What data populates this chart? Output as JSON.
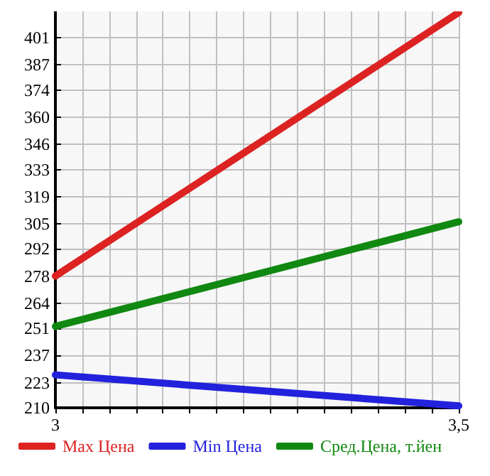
{
  "chart_data": {
    "type": "line",
    "x": [
      3,
      3.5
    ],
    "series": [
      {
        "name": "Max Цена",
        "color": "#dd2222",
        "values": [
          278,
          414
        ]
      },
      {
        "name": "Min Цена",
        "color": "#2222dd",
        "values": [
          227,
          211
        ]
      },
      {
        "name": "Сред.Цена, т.йен",
        "color": "#118811",
        "values": [
          252,
          306
        ]
      }
    ],
    "xlim": [
      3,
      3.5
    ],
    "xticks": [
      {
        "value": 3,
        "label": "3"
      },
      {
        "value": 3.0333,
        "label": null
      },
      {
        "value": 3.0667,
        "label": null
      },
      {
        "value": 3.1,
        "label": null
      },
      {
        "value": 3.1333,
        "label": null
      },
      {
        "value": 3.1667,
        "label": null
      },
      {
        "value": 3.2,
        "label": null
      },
      {
        "value": 3.2333,
        "label": null
      },
      {
        "value": 3.2667,
        "label": null
      },
      {
        "value": 3.3,
        "label": null
      },
      {
        "value": 3.3333,
        "label": null
      },
      {
        "value": 3.3667,
        "label": null
      },
      {
        "value": 3.4,
        "label": null
      },
      {
        "value": 3.4333,
        "label": null
      },
      {
        "value": 3.4667,
        "label": null
      },
      {
        "value": 3.5,
        "label": "3,5"
      }
    ],
    "ylim": [
      210,
      414.6
    ],
    "yticks": [
      210,
      223,
      237,
      251,
      264,
      278,
      292,
      305,
      319,
      333,
      346,
      360,
      374,
      387,
      401
    ],
    "grid": true,
    "legend": "bottom",
    "marker": "none",
    "line_style": "solid"
  }
}
